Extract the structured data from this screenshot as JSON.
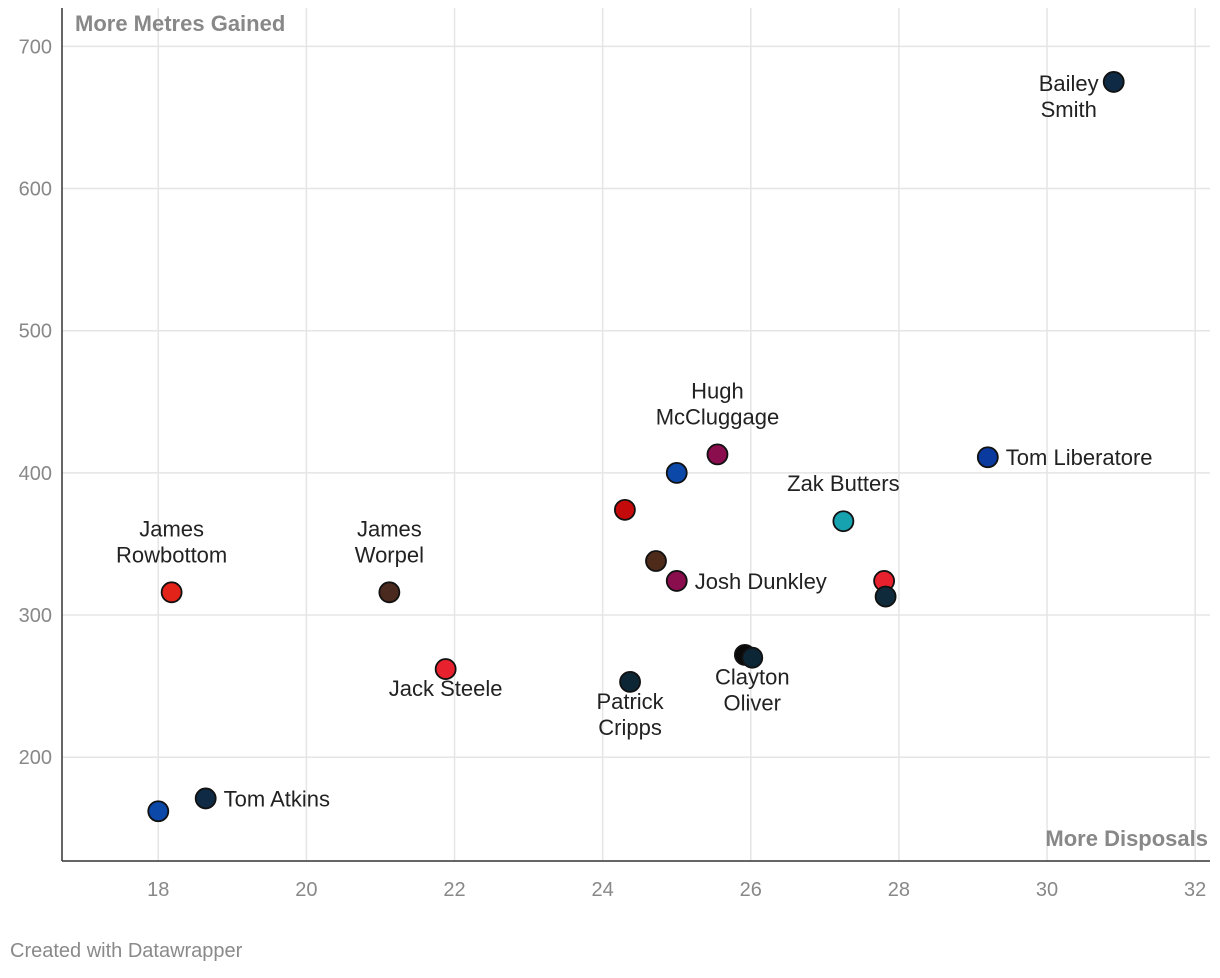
{
  "chart_data": {
    "type": "scatter",
    "title": "",
    "xlabel": "More Disposals",
    "ylabel": "More Metres Gained",
    "xlim": [
      16.7,
      32.2
    ],
    "ylim": [
      127,
      727
    ],
    "x_ticks": [
      18,
      20,
      22,
      24,
      26,
      28,
      30,
      32
    ],
    "y_ticks": [
      200,
      300,
      400,
      500,
      600,
      700
    ],
    "points": [
      {
        "x": 30.9,
        "y": 675,
        "color": "#0f2a44",
        "label": [
          "Bailey",
          "Smith"
        ],
        "label_pos": "left"
      },
      {
        "x": 29.2,
        "y": 411,
        "color": "#0a3a9e",
        "label": [
          "Tom Liberatore"
        ],
        "label_pos": "right"
      },
      {
        "x": 25.55,
        "y": 413,
        "color": "#8a0e4e",
        "label": [
          "Hugh",
          "McCluggage"
        ],
        "label_pos": "above"
      },
      {
        "x": 25.0,
        "y": 400,
        "color": "#0b48a8",
        "label": [],
        "label_pos": "none"
      },
      {
        "x": 24.3,
        "y": 374,
        "color": "#c40a0a",
        "label": [],
        "label_pos": "none"
      },
      {
        "x": 27.25,
        "y": 366,
        "color": "#17a2b0",
        "label": [
          "Zak Butters"
        ],
        "label_pos": "above"
      },
      {
        "x": 24.72,
        "y": 338,
        "color": "#4d2a1a",
        "label": [],
        "label_pos": "none"
      },
      {
        "x": 25.0,
        "y": 324,
        "color": "#8a0e4e",
        "label": [
          "Josh Dunkley"
        ],
        "label_pos": "right"
      },
      {
        "x": 27.8,
        "y": 324,
        "color": "#e8212e",
        "label": [],
        "label_pos": "none"
      },
      {
        "x": 27.82,
        "y": 313,
        "color": "#0f2a3a",
        "label": [],
        "label_pos": "none"
      },
      {
        "x": 18.18,
        "y": 316,
        "color": "#e2231a",
        "label": [
          "James",
          "Rowbottom"
        ],
        "label_pos": "above"
      },
      {
        "x": 21.12,
        "y": 316,
        "color": "#4a2a1e",
        "label": [
          "James",
          "Worpel"
        ],
        "label_pos": "above"
      },
      {
        "x": 21.88,
        "y": 262,
        "color": "#e8212e",
        "label": [
          "Jack Steele"
        ],
        "label_pos": "below"
      },
      {
        "x": 24.37,
        "y": 253,
        "color": "#0d2636",
        "label": [
          "Patrick",
          "Cripps"
        ],
        "label_pos": "below"
      },
      {
        "x": 25.92,
        "y": 272,
        "color": "#0a0a0a",
        "label": [],
        "label_pos": "none"
      },
      {
        "x": 26.02,
        "y": 270,
        "color": "#0d2636",
        "label": [
          "Clayton",
          "Oliver"
        ],
        "label_pos": "below"
      },
      {
        "x": 18.64,
        "y": 171,
        "color": "#0f2a44",
        "label": [
          "Tom Atkins"
        ],
        "label_pos": "right"
      },
      {
        "x": 18.0,
        "y": 162,
        "color": "#0b48a8",
        "label": [],
        "label_pos": "none"
      }
    ]
  },
  "footer": {
    "credit": "Created with Datawrapper"
  }
}
